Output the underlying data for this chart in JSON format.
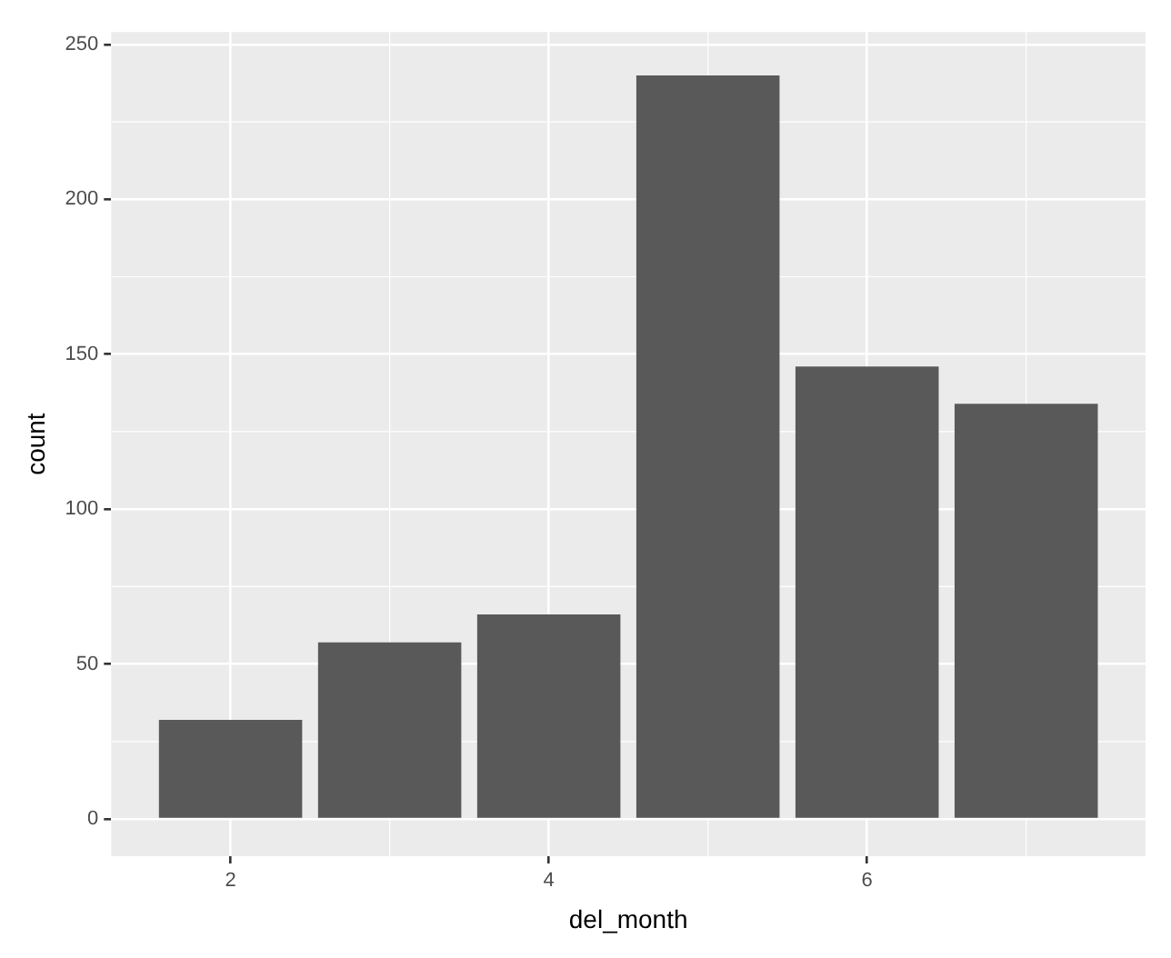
{
  "chart_data": {
    "type": "bar",
    "xlabel": "del_month",
    "ylabel": "count",
    "x": [
      2,
      3,
      4,
      5,
      6,
      7
    ],
    "values": [
      32,
      57,
      66,
      240,
      146,
      134
    ],
    "color": "#595959",
    "xlim": [
      1.25,
      7.75
    ],
    "xticks": [
      2,
      4,
      6
    ],
    "ylim": [
      -12,
      254
    ],
    "yticks": [
      0,
      50,
      100,
      150,
      200,
      250
    ],
    "grid": true,
    "legend": false
  }
}
